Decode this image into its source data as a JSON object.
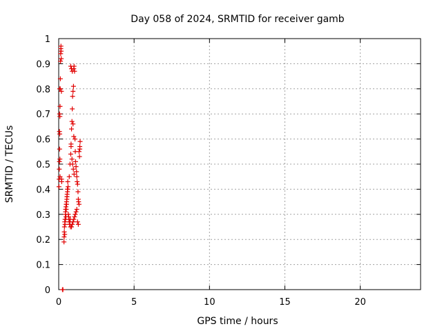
{
  "chart_data": {
    "type": "scatter",
    "title": "Day 058 of 2024, SRMTID for receiver gamb",
    "xlabel": "GPS time / hours",
    "ylabel": "SRMTID / TECUs",
    "xlim": [
      0,
      24
    ],
    "ylim": [
      0,
      1
    ],
    "xticks": [
      0,
      5,
      10,
      15,
      20
    ],
    "yticks": [
      0,
      0.1,
      0.2,
      0.3,
      0.4,
      0.5,
      0.6,
      0.7,
      0.8,
      0.9,
      1
    ],
    "ytick_labels": [
      "0",
      "0.1",
      "0.2",
      "0.3",
      "0.4",
      "0.5",
      "0.6",
      "0.7",
      "0.8",
      "0.9",
      "1"
    ],
    "xtick_labels": [
      "0",
      "5",
      "10",
      "15",
      "20"
    ],
    "grid": true,
    "marker": "+",
    "color": "#e00000",
    "series": [
      {
        "name": "SRMTID",
        "x": [
          0.02,
          0.03,
          0.04,
          0.05,
          0.06,
          0.07,
          0.08,
          0.09,
          0.1,
          0.11,
          0.12,
          0.13,
          0.14,
          0.15,
          0.16,
          0.17,
          0.18,
          0.19,
          0.2,
          0.05,
          0.06,
          0.07,
          0.08,
          0.09,
          0.35,
          0.36,
          0.37,
          0.38,
          0.4,
          0.42,
          0.44,
          0.45,
          0.46,
          0.48,
          0.5,
          0.52,
          0.54,
          0.55,
          0.56,
          0.58,
          0.6,
          0.62,
          0.64,
          0.66,
          0.68,
          0.7,
          0.72,
          0.74,
          0.76,
          0.78,
          0.4,
          0.42,
          0.45,
          0.48,
          0.5,
          0.52,
          0.55,
          0.58,
          0.6,
          0.7,
          0.75,
          0.8,
          0.82,
          0.85,
          0.88,
          0.9,
          0.92,
          0.95,
          0.98,
          1.0,
          1.02,
          1.05,
          1.08,
          1.1,
          1.12,
          1.15,
          1.18,
          1.2,
          1.22,
          1.25,
          1.28,
          1.3,
          1.32,
          1.35,
          1.38,
          1.4,
          1.42,
          0.8,
          0.85,
          0.9,
          0.95,
          1.0,
          0.82,
          0.88,
          0.92,
          0.97,
          1.02,
          0.85,
          0.9,
          0.95,
          1.0,
          1.05,
          1.1,
          1.15,
          1.2,
          1.25,
          1.3,
          1.35,
          1.4,
          0.25,
          0.28
        ],
        "y": [
          0.41,
          0.44,
          0.48,
          0.51,
          0.56,
          0.62,
          0.69,
          0.73,
          0.8,
          0.84,
          0.91,
          0.94,
          0.96,
          0.97,
          0.95,
          0.92,
          0.79,
          0.44,
          0.43,
          0.63,
          0.7,
          0.8,
          0.52,
          0.45,
          0.19,
          0.21,
          0.23,
          0.25,
          0.27,
          0.28,
          0.3,
          0.31,
          0.32,
          0.33,
          0.34,
          0.35,
          0.36,
          0.37,
          0.38,
          0.39,
          0.4,
          0.41,
          0.3,
          0.29,
          0.28,
          0.27,
          0.26,
          0.27,
          0.28,
          0.25,
          0.22,
          0.26,
          0.28,
          0.29,
          0.32,
          0.34,
          0.37,
          0.4,
          0.43,
          0.45,
          0.5,
          0.54,
          0.58,
          0.64,
          0.67,
          0.72,
          0.77,
          0.79,
          0.81,
          0.88,
          0.89,
          0.87,
          0.6,
          0.55,
          0.51,
          0.49,
          0.47,
          0.45,
          0.43,
          0.42,
          0.39,
          0.36,
          0.35,
          0.34,
          0.53,
          0.56,
          0.59,
          0.89,
          0.88,
          0.87,
          0.66,
          0.61,
          0.57,
          0.52,
          0.5,
          0.48,
          0.46,
          0.25,
          0.26,
          0.27,
          0.28,
          0.29,
          0.3,
          0.31,
          0.32,
          0.27,
          0.26,
          0.55,
          0.57,
          0.0,
          0.0
        ]
      }
    ]
  }
}
